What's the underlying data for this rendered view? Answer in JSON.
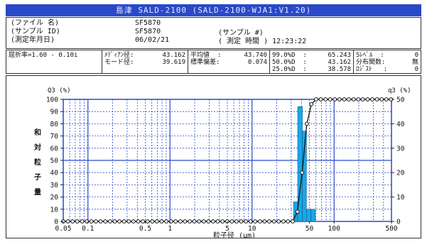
{
  "window_title": "島津  SALD-2100   (SALD-2100-WJA1:V1.20)",
  "sample_info": [
    {
      "label": "(ファイル 名)",
      "value": "SF5870"
    },
    {
      "label": "(サンプル ID)",
      "value": "SF5870"
    },
    {
      "label": "(測定年月日)",
      "value": "06/02/21"
    }
  ],
  "sample_meta": {
    "sample_no_label": "(サンプル #)",
    "time_label": "( 測定 時間 )",
    "time_value": "12:23:22"
  },
  "refractive_index": "屈折率=1.60 - 0.10i",
  "stats_a": [
    {
      "label": "ﾒﾃﾞｨｱﾝ径:",
      "value": "43.162"
    },
    {
      "label": "モード径:",
      "value": "39.619"
    }
  ],
  "stats_b": [
    {
      "label": "平均値  :",
      "value": "43.740"
    },
    {
      "label": "標準偏差:",
      "value": "0.074"
    }
  ],
  "stats_c": [
    {
      "label": "99.0%D  :",
      "value": "65.243"
    },
    {
      "label": "50.0%D  :",
      "value": "43.162"
    },
    {
      "label": "25.0%D  :",
      "value": "38.578"
    }
  ],
  "stats_d": [
    {
      "label": "Sﾚﾍﾞﾙ  :",
      "value": "0"
    },
    {
      "label": "分布関数:",
      "value": "無"
    },
    {
      "label": "ﾛｼﾞｽﾄ   :",
      "value": "0"
    }
  ],
  "chart_data": {
    "type": "bar",
    "x_scale": "log",
    "xlim": [
      0.05,
      500
    ],
    "ylim": [
      0,
      100
    ],
    "y2lim": [
      0,
      50
    ],
    "xlabel": "粒子径 (μm)",
    "ylabel_left_top": "Q3 (%)",
    "ylabel_right_top": "q3 (%)",
    "ylabel_vertical": [
      "和",
      "対",
      "粒",
      "子",
      "量"
    ],
    "x_ticks": [
      {
        "v": 0.05,
        "label": "0.05"
      },
      {
        "v": 0.1,
        "label": "0.1"
      },
      {
        "v": 0.5,
        "label": "0.5"
      },
      {
        "v": 1,
        "label": "1"
      },
      {
        "v": 5,
        "label": "5"
      },
      {
        "v": 10,
        "label": "10"
      },
      {
        "v": 50,
        "label": "50"
      },
      {
        "v": 100,
        "label": "100"
      },
      {
        "v": 500,
        "label": "500"
      }
    ],
    "y_ticks_left": [
      "0",
      "10",
      "20",
      "30",
      "40",
      "50",
      "60",
      "70",
      "80",
      "90",
      "100"
    ],
    "y_ticks_right": [
      "0",
      "10",
      "20",
      "30",
      "40",
      "50"
    ],
    "histogram_q3": [
      {
        "x_from": 32,
        "x_to": 36,
        "value": 8
      },
      {
        "x_from": 36,
        "x_to": 41,
        "value": 47
      },
      {
        "x_from": 41,
        "x_to": 46,
        "value": 37
      },
      {
        "x_from": 46,
        "x_to": 52,
        "value": 5
      },
      {
        "x_from": 52,
        "x_to": 59,
        "value": 5
      }
    ],
    "cumulative_Q3": {
      "x": [
        0.05,
        0.057,
        0.065,
        0.074,
        0.085,
        0.097,
        0.11,
        0.125,
        0.143,
        0.163,
        0.186,
        0.212,
        0.242,
        0.276,
        0.315,
        0.359,
        0.41,
        0.467,
        0.533,
        0.608,
        0.693,
        0.79,
        0.9,
        1.03,
        1.17,
        1.34,
        1.52,
        1.74,
        1.98,
        2.26,
        2.58,
        2.94,
        3.35,
        3.82,
        4.36,
        4.97,
        5.67,
        6.47,
        7.38,
        8.41,
        9.6,
        10.9,
        12.5,
        14.2,
        16.2,
        18.5,
        21.1,
        24.1,
        27.4,
        31.3,
        35.7,
        40.7,
        46.4,
        52.9,
        60.3,
        68.8,
        78.5,
        89.5,
        102,
        116,
        133,
        151,
        173,
        197,
        224,
        256,
        292,
        333,
        380,
        433,
        494
      ],
      "y": [
        0,
        0,
        0,
        0,
        0,
        0,
        0,
        0,
        0,
        0,
        0,
        0,
        0,
        0,
        0,
        0,
        0,
        0,
        0,
        0,
        0,
        0,
        0,
        0,
        0,
        0,
        0,
        0,
        0,
        0,
        0,
        0,
        0,
        0,
        0,
        0,
        0,
        0,
        0,
        0,
        0,
        0,
        0,
        0,
        0,
        0,
        0,
        0,
        0,
        0,
        8,
        40,
        80,
        96,
        100,
        100,
        100,
        100,
        100,
        100,
        100,
        100,
        100,
        100,
        100,
        100,
        100,
        100,
        100,
        100,
        100
      ]
    },
    "grid": true
  },
  "colors": {
    "title_bg": "#2a49c8",
    "grid_blue": "#2a49c8",
    "bar_fill": "#1aa7e8",
    "curve": "#111111"
  }
}
